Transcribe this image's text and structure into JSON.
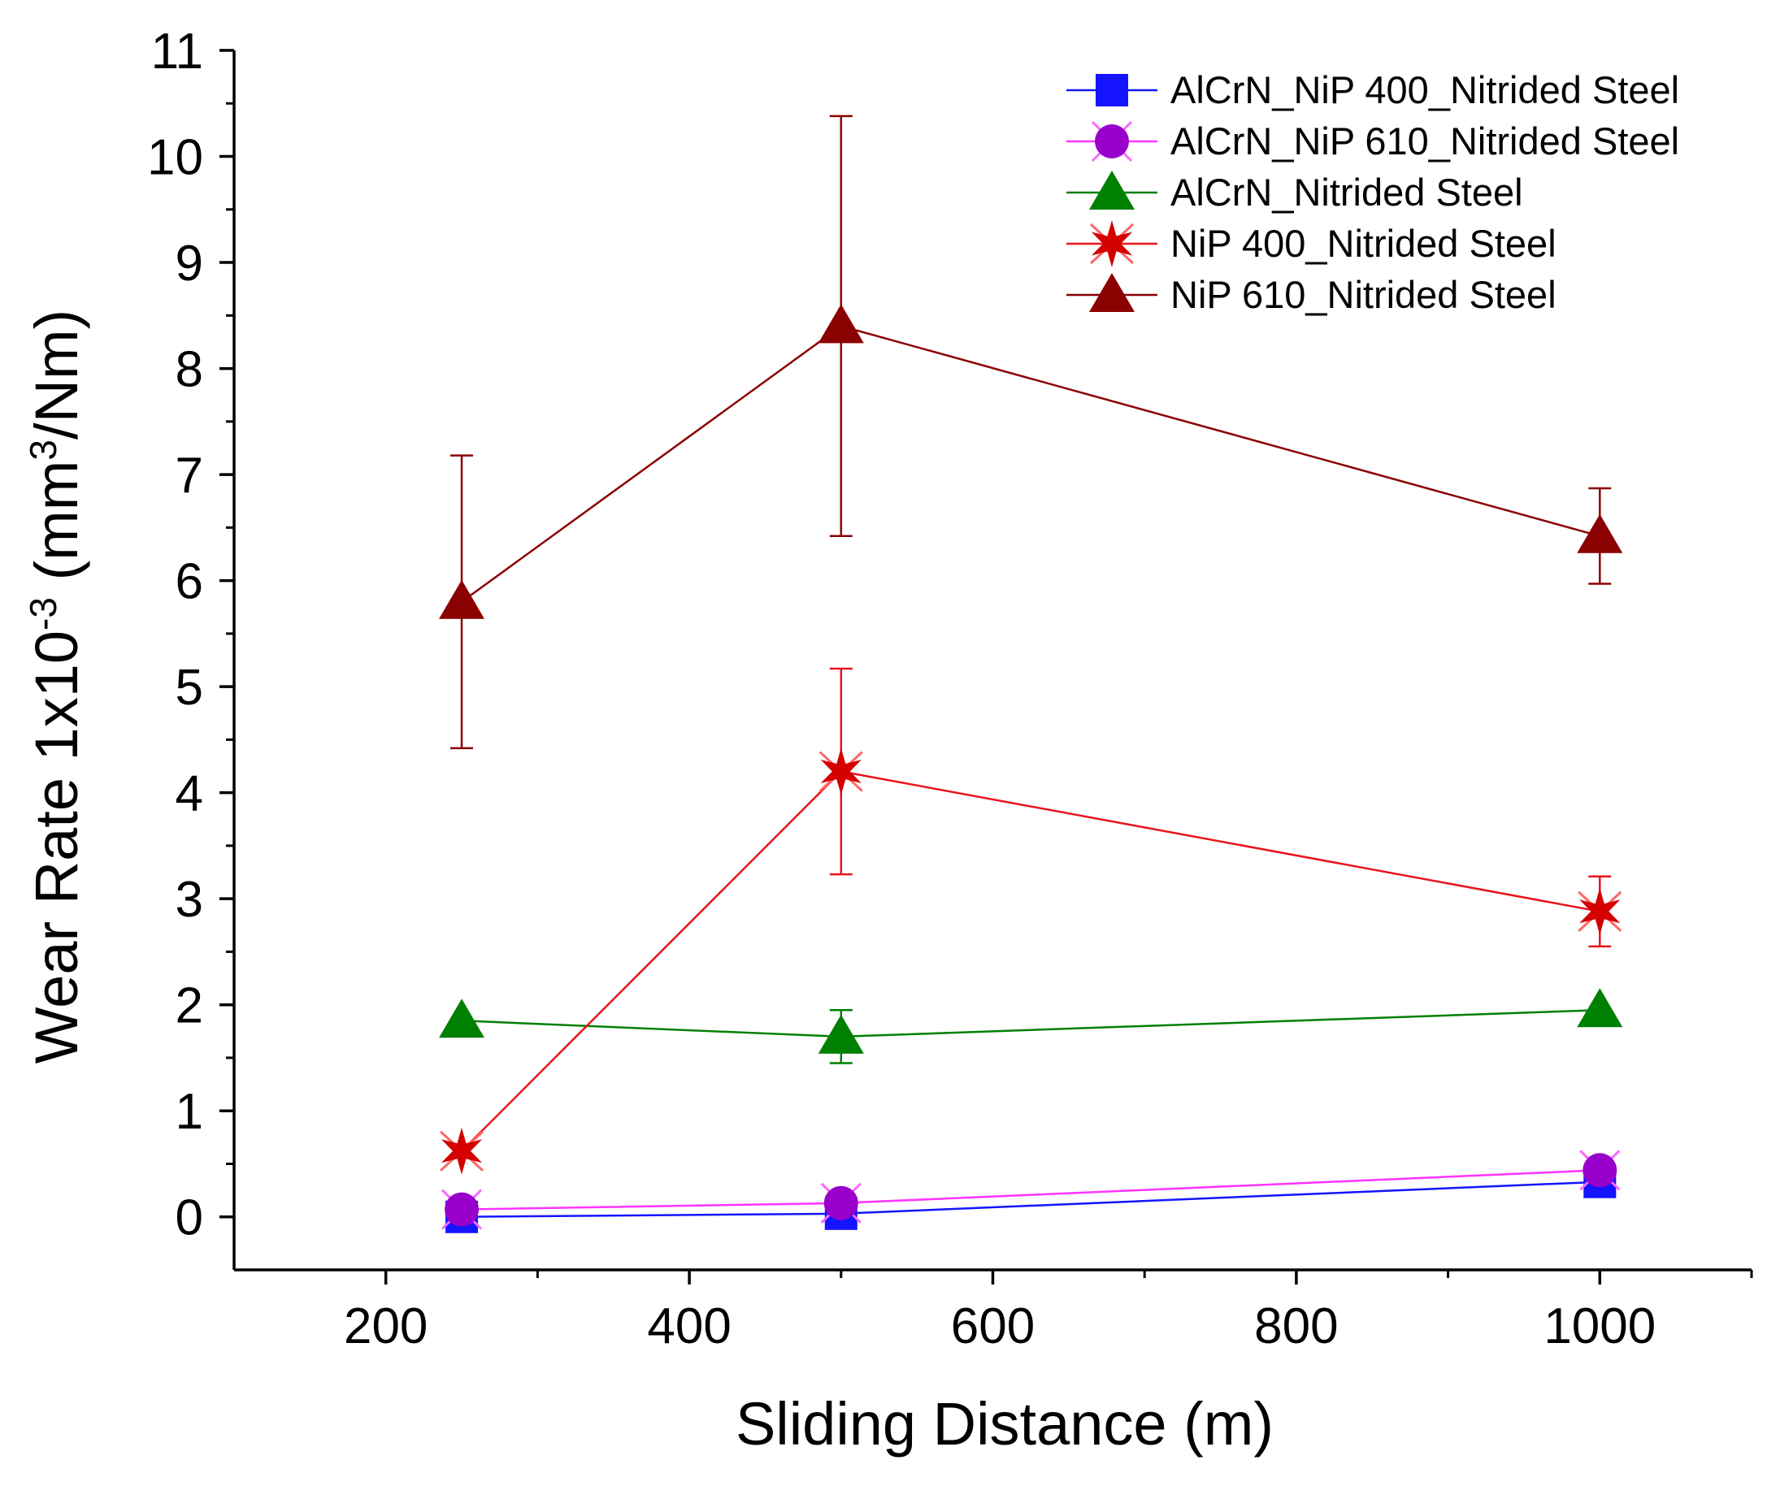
{
  "chart_data": {
    "type": "line",
    "title": "",
    "xlabel": "Sliding Distance (m)",
    "ylabel": {
      "prefix": "Wear Rate 1x10",
      "exp1": "-3",
      "middle": " (mm",
      "exp2": "3",
      "suffix": "/Nm)"
    },
    "xlim": [
      100,
      1100
    ],
    "ylim": [
      -0.5,
      11
    ],
    "xticks": [
      200,
      400,
      600,
      800,
      1000
    ],
    "xticks_minor": [
      300,
      500,
      700,
      900,
      1100
    ],
    "yticks": [
      0,
      1,
      2,
      3,
      4,
      5,
      6,
      7,
      8,
      9,
      10,
      11
    ],
    "yticks_minor": [
      0.5,
      1.5,
      2.5,
      3.5,
      4.5,
      5.5,
      6.5,
      7.5,
      8.5,
      9.5,
      10.5
    ],
    "grid": false,
    "legend_position": "top-right",
    "series": [
      {
        "name": "AlCrN_NiP 400_Nitrided Steel",
        "color": "#1414ff",
        "marker": "square",
        "x": [
          250,
          500,
          1000
        ],
        "y": [
          0.0,
          0.03,
          0.33
        ],
        "err": [
          0,
          0,
          0
        ]
      },
      {
        "name": "AlCrN_NiP 610_Nitrided Steel",
        "color": "#ff33ff",
        "marker_color": "#9900cc",
        "marker": "circle",
        "x": [
          250,
          500,
          1000
        ],
        "y": [
          0.07,
          0.13,
          0.44
        ],
        "err": [
          0,
          0,
          0
        ]
      },
      {
        "name": "AlCrN_Nitrided Steel",
        "color": "#008000",
        "marker": "triangle",
        "x": [
          250,
          500,
          1000
        ],
        "y": [
          1.85,
          1.7,
          1.95
        ],
        "err": [
          0,
          0.25,
          0
        ]
      },
      {
        "name": "NiP 400_Nitrided Steel",
        "color": "#e8141c",
        "marker_color": "#d40000",
        "marker": "star",
        "x": [
          250,
          500,
          1000
        ],
        "y": [
          0.62,
          4.2,
          2.88
        ],
        "err": [
          0,
          0.97,
          0.33
        ]
      },
      {
        "name": "NiP 610_Nitrided Steel",
        "color": "#8b0000",
        "marker": "triangle",
        "x": [
          250,
          500,
          1000
        ],
        "y": [
          5.8,
          8.4,
          6.42
        ],
        "err": [
          1.38,
          1.98,
          0.45
        ]
      }
    ]
  }
}
